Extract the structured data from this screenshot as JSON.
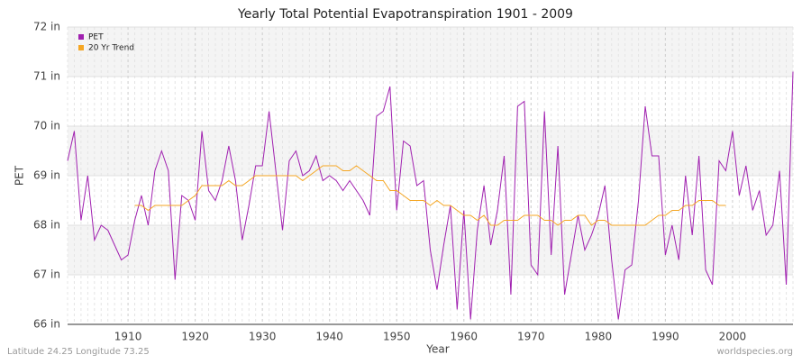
{
  "chart_data": {
    "type": "line",
    "title": "Yearly Total Potential Evapotranspiration 1901 - 2009",
    "x_label": "Year",
    "y_label": "PET",
    "footer_left": "Latitude 24.25 Longitude 73.25",
    "footer_right": "worldspecies.org",
    "legend": "top-left",
    "grid": true,
    "x": [
      1901,
      1902,
      1903,
      1904,
      1905,
      1906,
      1907,
      1908,
      1909,
      1910,
      1911,
      1912,
      1913,
      1914,
      1915,
      1916,
      1917,
      1918,
      1919,
      1920,
      1921,
      1922,
      1923,
      1924,
      1925,
      1926,
      1927,
      1928,
      1929,
      1930,
      1931,
      1932,
      1933,
      1934,
      1935,
      1936,
      1937,
      1938,
      1939,
      1940,
      1941,
      1942,
      1943,
      1944,
      1945,
      1946,
      1947,
      1948,
      1949,
      1950,
      1951,
      1952,
      1953,
      1954,
      1955,
      1956,
      1957,
      1958,
      1959,
      1960,
      1961,
      1962,
      1963,
      1964,
      1965,
      1966,
      1967,
      1968,
      1969,
      1970,
      1971,
      1972,
      1973,
      1974,
      1975,
      1976,
      1977,
      1978,
      1979,
      1980,
      1981,
      1982,
      1983,
      1984,
      1985,
      1986,
      1987,
      1988,
      1989,
      1990,
      1991,
      1992,
      1993,
      1994,
      1995,
      1996,
      1997,
      1998,
      1999,
      2000,
      2001,
      2002,
      2003,
      2004,
      2005,
      2006,
      2007,
      2008,
      2009
    ],
    "xlim": [
      1901,
      2009
    ],
    "xticks": [
      1910,
      1920,
      1930,
      1940,
      1950,
      1960,
      1970,
      1980,
      1990,
      2000
    ],
    "ylim": [
      66,
      72
    ],
    "yticks": [
      {
        "value": 66,
        "label": "66 in"
      },
      {
        "value": 67,
        "label": "67 in"
      },
      {
        "value": 68,
        "label": "68 in"
      },
      {
        "value": 69,
        "label": "69 in"
      },
      {
        "value": 70,
        "label": "70 in"
      },
      {
        "value": 71,
        "label": "71 in"
      },
      {
        "value": 72,
        "label": "72 in"
      }
    ],
    "series": [
      {
        "name": "PET",
        "color": "#a020b0",
        "values": [
          69.3,
          69.9,
          68.1,
          69.0,
          67.7,
          68.0,
          67.9,
          67.6,
          67.3,
          67.4,
          68.1,
          68.6,
          68.0,
          69.1,
          69.5,
          69.1,
          66.9,
          68.6,
          68.5,
          68.1,
          69.9,
          68.7,
          68.5,
          68.9,
          69.6,
          68.9,
          67.7,
          68.4,
          69.2,
          69.2,
          70.3,
          69.1,
          67.9,
          69.3,
          69.5,
          69.0,
          69.1,
          69.4,
          68.9,
          69.0,
          68.9,
          68.7,
          68.9,
          68.7,
          68.5,
          68.2,
          70.2,
          70.3,
          70.8,
          68.3,
          69.7,
          69.6,
          68.8,
          68.9,
          67.5,
          66.7,
          67.6,
          68.4,
          66.3,
          68.3,
          66.1,
          67.9,
          68.8,
          67.6,
          68.3,
          69.4,
          66.6,
          70.4,
          70.5,
          67.2,
          67.0,
          70.3,
          67.4,
          69.6,
          66.6,
          67.4,
          68.2,
          67.5,
          67.8,
          68.2,
          68.8,
          67.3,
          66.1,
          67.1,
          67.2,
          68.5,
          70.4,
          69.4,
          69.4,
          67.4,
          68.0,
          67.3,
          69.0,
          67.8,
          69.4,
          67.1,
          66.8,
          69.3,
          69.1,
          69.9,
          68.6,
          69.2,
          68.3,
          68.7,
          67.8,
          68.0,
          69.1,
          66.8,
          71.1
        ]
      },
      {
        "name": "20 Yr Trend",
        "color": "#f5a623",
        "values": [
          null,
          null,
          null,
          null,
          null,
          null,
          null,
          null,
          null,
          null,
          68.4,
          68.4,
          68.3,
          68.4,
          68.4,
          68.4,
          68.4,
          68.4,
          68.5,
          68.6,
          68.8,
          68.8,
          68.8,
          68.8,
          68.9,
          68.8,
          68.8,
          68.9,
          69.0,
          69.0,
          69.0,
          69.0,
          69.0,
          69.0,
          69.0,
          68.9,
          69.0,
          69.1,
          69.2,
          69.2,
          69.2,
          69.1,
          69.1,
          69.2,
          69.1,
          69.0,
          68.9,
          68.9,
          68.7,
          68.7,
          68.6,
          68.5,
          68.5,
          68.5,
          68.4,
          68.5,
          68.4,
          68.4,
          68.3,
          68.2,
          68.2,
          68.1,
          68.2,
          68.0,
          68.0,
          68.1,
          68.1,
          68.1,
          68.2,
          68.2,
          68.2,
          68.1,
          68.1,
          68.0,
          68.1,
          68.1,
          68.2,
          68.2,
          68.0,
          68.1,
          68.1,
          68.0,
          68.0,
          68.0,
          68.0,
          68.0,
          68.0,
          68.1,
          68.2,
          68.2,
          68.3,
          68.3,
          68.4,
          68.4,
          68.5,
          68.5,
          68.5,
          68.4,
          68.4,
          null,
          null,
          null,
          null,
          null,
          null,
          null,
          null,
          null,
          null
        ]
      }
    ]
  }
}
